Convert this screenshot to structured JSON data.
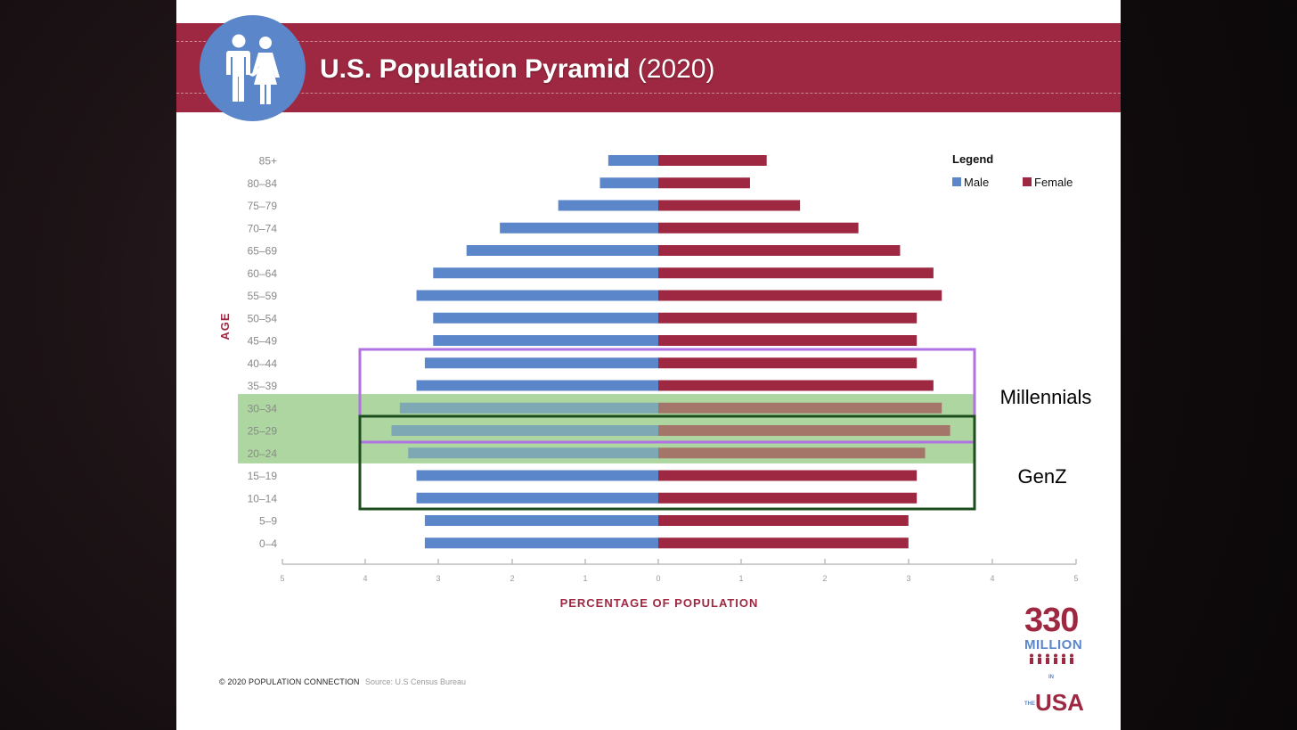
{
  "slide": {
    "title_main": "U.S. Population Pyramid",
    "title_year": "(2020)",
    "footer_copyright": "© 2020 POPULATION CONNECTION",
    "footer_source": "Source: U.S Census Bureau",
    "brand_number": "330",
    "brand_million": "MILLION",
    "brand_in_the": "IN THE",
    "brand_usa": "USA",
    "icon": "people-icon",
    "colors": {
      "banner": "#9e2841",
      "male": "#5b86c9",
      "female": "#9e2841",
      "millennials_box": "#b071e3",
      "genz_box": "#1d4d1d",
      "highlight": "#a9d49b"
    }
  },
  "chart_data": {
    "type": "bar",
    "orientation": "horizontal",
    "ylabel": "AGE",
    "xlabel": "PERCENTAGE  OF POPULATION",
    "xlim": [
      -5,
      5
    ],
    "x_ticks": [
      "5",
      "4",
      "3",
      "2",
      "1",
      "0",
      "1",
      "2",
      "3",
      "4",
      "5"
    ],
    "categories": [
      "85+",
      "80–84",
      "75–79",
      "70–74",
      "65–69",
      "60–64",
      "55–59",
      "50–54",
      "45–49",
      "40–44",
      "35–39",
      "30–34",
      "25–29",
      "20–24",
      "15–19",
      "10–14",
      "5–9",
      "0–4"
    ],
    "legend_title": "Legend",
    "legend_position": "top-right",
    "series": [
      {
        "name": "Male",
        "color": "#5b86c9",
        "values": [
          0.6,
          0.7,
          1.2,
          1.9,
          2.3,
          2.7,
          2.9,
          2.7,
          2.7,
          2.8,
          2.9,
          3.1,
          3.2,
          3.0,
          2.9,
          2.9,
          2.8,
          2.8
        ]
      },
      {
        "name": "Female",
        "color": "#9e2841",
        "values": [
          1.3,
          1.1,
          1.7,
          2.4,
          2.9,
          3.3,
          3.4,
          3.1,
          3.1,
          3.1,
          3.3,
          3.4,
          3.5,
          3.2,
          3.1,
          3.1,
          3.0,
          3.0
        ]
      }
    ],
    "annotations": [
      {
        "label": "Millennials",
        "from": "40–44",
        "to": "25–29",
        "style": "box",
        "color": "#b071e3"
      },
      {
        "label": "GenZ",
        "from": "25–29",
        "to": "10–14",
        "style": "box",
        "color": "#1d4d1d"
      },
      {
        "label": "",
        "from": "30–34",
        "to": "20–24",
        "style": "band",
        "color": "#a9d49b"
      }
    ],
    "grid": false
  }
}
